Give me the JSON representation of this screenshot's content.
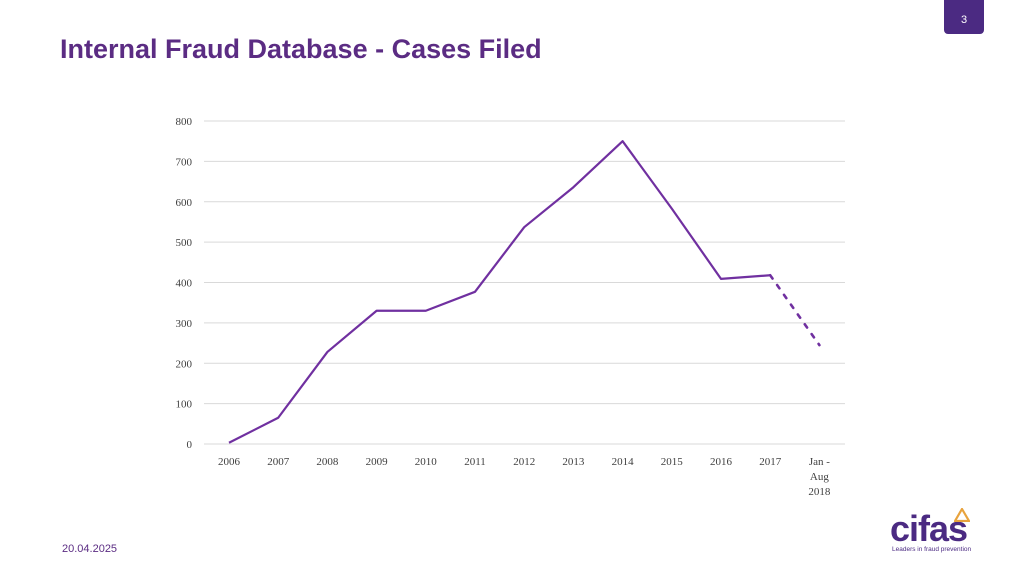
{
  "slide": {
    "title": "Internal Fraud Database - Cases Filed",
    "page_number": "3",
    "date": "20.04.2025"
  },
  "logo": {
    "wordmark": "cifas",
    "tagline": "Leaders in fraud prevention"
  },
  "colors": {
    "title": "#5b2c83",
    "line": "#7030a0",
    "grid": "#d9d9d9",
    "tick_text": "#404040",
    "badge": "#4b2a82"
  },
  "chart_data": {
    "type": "line",
    "title": "",
    "xlabel": "",
    "ylabel": "",
    "ylim": [
      0,
      800
    ],
    "yticks": [
      0,
      100,
      200,
      300,
      400,
      500,
      600,
      700,
      800
    ],
    "categories": [
      "2006",
      "2007",
      "2008",
      "2009",
      "2010",
      "2011",
      "2012",
      "2013",
      "2014",
      "2015",
      "2016",
      "2017",
      "Jan - Aug 2018"
    ],
    "category_label_lines": [
      [
        "2006"
      ],
      [
        "2007"
      ],
      [
        "2008"
      ],
      [
        "2009"
      ],
      [
        "2010"
      ],
      [
        "2011"
      ],
      [
        "2012"
      ],
      [
        "2013"
      ],
      [
        "2014"
      ],
      [
        "2015"
      ],
      [
        "2016"
      ],
      [
        "2017"
      ],
      [
        "Jan -",
        "Aug",
        "2018"
      ]
    ],
    "series": [
      {
        "name": "Cases filed",
        "values": [
          3,
          65,
          228,
          330,
          330,
          377,
          537,
          636,
          750,
          583,
          409,
          418,
          245
        ],
        "dashed_last_segment": true
      }
    ],
    "grid": true,
    "legend": "none"
  }
}
